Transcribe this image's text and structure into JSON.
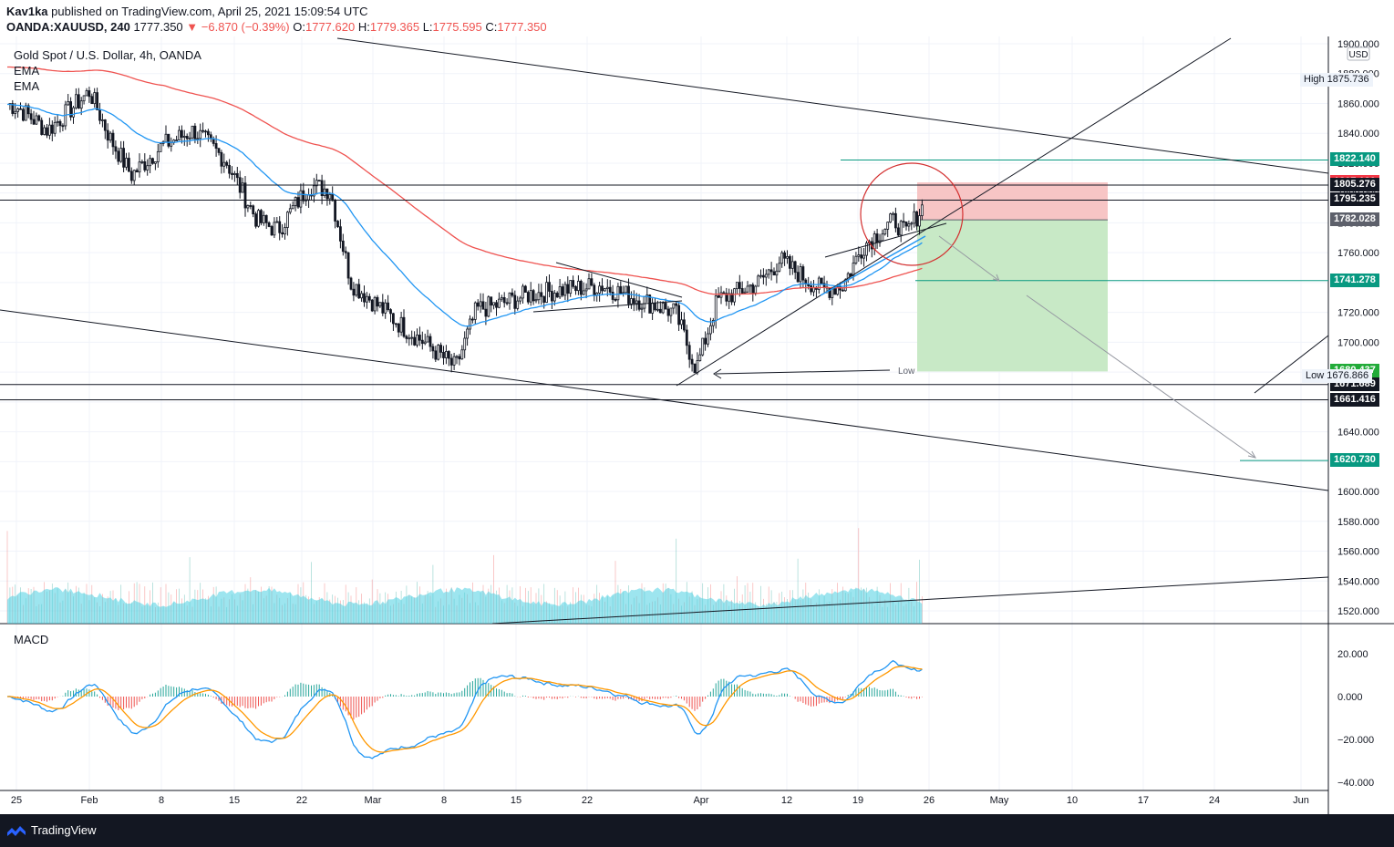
{
  "header": {
    "author": "Kav1ka",
    "published": "published on TradingView.com, April 25, 2021 15:09:54 UTC",
    "symbol": "OANDA:XAUUSD, 240",
    "last": "1777.350",
    "change": "▼ −6.870 (−0.39%)",
    "o_label": "O:",
    "o": "1777.620",
    "h_label": "H:",
    "h": "1779.365",
    "l_label": "L:",
    "l": "1775.595",
    "c_label": "C:",
    "c": "1777.350"
  },
  "legend": {
    "title": "Gold Spot / U.S. Dollar, 4h, OANDA",
    "ema1": "EMA",
    "ema2": "EMA",
    "macd": "MACD"
  },
  "axis": {
    "currency": "USD",
    "high_tag": "High",
    "high_value": "1875.736",
    "low_tag": "Low",
    "low_value": "1676.866",
    "price_ticks": [
      "1900.000",
      "1880.000",
      "1860.000",
      "1840.000",
      "1820.000",
      "1800.000",
      "1780.000",
      "1760.000",
      "1740.000",
      "1720.000",
      "1700.000",
      "1680.000",
      "1660.000",
      "1640.000",
      "1620.000",
      "1600.000",
      "1580.000",
      "1560.000",
      "1540.000",
      "1520.000"
    ],
    "macd_ticks": [
      "20.000",
      "0.000",
      "−20.000",
      "−40.000"
    ],
    "time_ticks": [
      "25",
      "Feb",
      "8",
      "15",
      "22",
      "Mar",
      "8",
      "15",
      "22",
      "Apr",
      "12",
      "19",
      "26",
      "May",
      "10",
      "17",
      "24",
      "Jun"
    ]
  },
  "price_labels": [
    {
      "value": "1822.140",
      "bg": "#089981",
      "fg": "#ffffff"
    },
    {
      "value": "1807.120",
      "bg": "#f23645",
      "fg": "#ffffff"
    },
    {
      "value": "1805.276",
      "bg": "#131722",
      "fg": "#ffffff"
    },
    {
      "value": "1795.235",
      "bg": "#131722",
      "fg": "#ffffff"
    },
    {
      "value": "1782.028",
      "bg": "#5d606b",
      "fg": "#ffffff"
    },
    {
      "value": "1741.278",
      "bg": "#089981",
      "fg": "#ffffff"
    },
    {
      "value": "1680.437",
      "bg": "#22ab39",
      "fg": "#ffffff"
    },
    {
      "value": "1671.689",
      "bg": "#131722",
      "fg": "#ffffff"
    },
    {
      "value": "1661.416",
      "bg": "#131722",
      "fg": "#ffffff"
    },
    {
      "value": "1620.730",
      "bg": "#089981",
      "fg": "#ffffff"
    }
  ],
  "annotations": {
    "low_arrow_text": "Low"
  },
  "colors": {
    "ema_fast": "#2196f3",
    "ema_slow": "#ef5350",
    "volume": "#4dd0e1",
    "loss_zone": "#f7c5c5",
    "profit_zone": "#c8e9c6",
    "macd_line": "#2196f3",
    "signal_line": "#ff9800"
  },
  "chart_data": {
    "type": "candlestick",
    "title": "Gold Spot / U.S. Dollar, 4h, OANDA",
    "ylim": [
      1510,
      1905
    ],
    "horizontal_levels": [
      1822.14,
      1807.12,
      1805.276,
      1795.235,
      1782.028,
      1741.278,
      1680.437,
      1671.689,
      1661.416,
      1620.73
    ],
    "high": 1875.736,
    "low": 1676.866,
    "close_path": [
      {
        "date": "2021-01-21",
        "price": 1865
      },
      {
        "date": "2021-01-25",
        "price": 1858
      },
      {
        "date": "2021-01-28",
        "price": 1842
      },
      {
        "date": "2021-02-01",
        "price": 1868
      },
      {
        "date": "2021-02-03",
        "price": 1836
      },
      {
        "date": "2021-02-05",
        "price": 1812
      },
      {
        "date": "2021-02-08",
        "price": 1832
      },
      {
        "date": "2021-02-11",
        "price": 1842
      },
      {
        "date": "2021-02-14",
        "price": 1822
      },
      {
        "date": "2021-02-17",
        "price": 1782
      },
      {
        "date": "2021-02-19",
        "price": 1775
      },
      {
        "date": "2021-02-22",
        "price": 1805
      },
      {
        "date": "2021-02-24",
        "price": 1802
      },
      {
        "date": "2021-02-26",
        "price": 1740
      },
      {
        "date": "2021-03-01",
        "price": 1722
      },
      {
        "date": "2021-03-03",
        "price": 1710
      },
      {
        "date": "2021-03-05",
        "price": 1700
      },
      {
        "date": "2021-03-08",
        "price": 1683
      },
      {
        "date": "2021-03-10",
        "price": 1722
      },
      {
        "date": "2021-03-12",
        "price": 1725
      },
      {
        "date": "2021-03-15",
        "price": 1732
      },
      {
        "date": "2021-03-18",
        "price": 1735
      },
      {
        "date": "2021-03-22",
        "price": 1738
      },
      {
        "date": "2021-03-25",
        "price": 1730
      },
      {
        "date": "2021-03-29",
        "price": 1720
      },
      {
        "date": "2021-03-31",
        "price": 1682
      },
      {
        "date": "2021-04-02",
        "price": 1728
      },
      {
        "date": "2021-04-06",
        "price": 1740
      },
      {
        "date": "2021-04-08",
        "price": 1755
      },
      {
        "date": "2021-04-12",
        "price": 1735
      },
      {
        "date": "2021-04-14",
        "price": 1738
      },
      {
        "date": "2021-04-16",
        "price": 1765
      },
      {
        "date": "2021-04-19",
        "price": 1782
      },
      {
        "date": "2021-04-20",
        "price": 1772
      },
      {
        "date": "2021-04-22",
        "price": 1795
      },
      {
        "date": "2021-04-23",
        "price": 1782
      },
      {
        "date": "2021-04-25",
        "price": 1777.35
      }
    ],
    "macd_range": [
      -42,
      30
    ]
  }
}
